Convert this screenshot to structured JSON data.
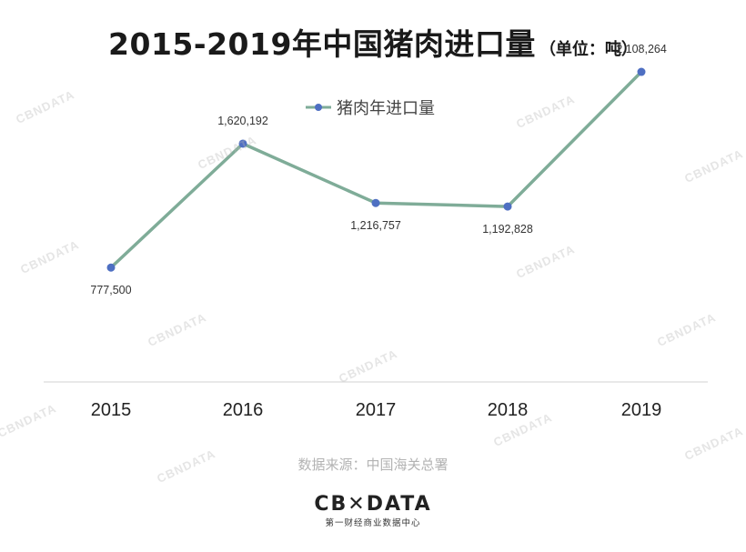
{
  "title": "2015-2019年中国猪肉进口量",
  "unit": "（单位：吨）",
  "source": "数据来源：中国海关总署",
  "logo": {
    "main": "CB✕DATA",
    "sub": "第一财经商业数据中心"
  },
  "watermark_text": "CBNDATA",
  "colors": {
    "line": "#7fac98",
    "marker": "#4e6fc2",
    "axis": "#d9d9d9"
  },
  "chart_data": {
    "type": "line",
    "title": "2015-2019年中国猪肉进口量",
    "categories": [
      "2015",
      "2016",
      "2017",
      "2018",
      "2019"
    ],
    "series": [
      {
        "name": "猪肉年进口量",
        "values": [
          777500,
          1620192,
          1216757,
          1192828,
          2108264
        ],
        "labels": [
          "777,500",
          "1,620,192",
          "1,216,757",
          "1,192,828",
          "2,108,264"
        ]
      }
    ],
    "ylim": [
      0,
      2300000
    ],
    "grid": false,
    "legend": "top-center",
    "xlabel": "",
    "ylabel": ""
  }
}
